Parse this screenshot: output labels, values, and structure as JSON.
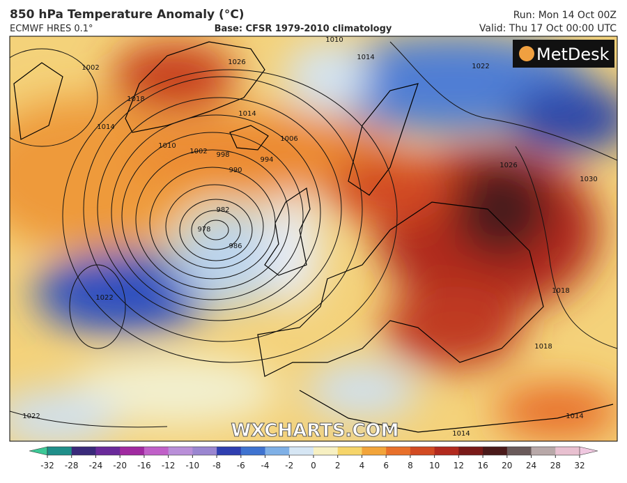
{
  "header": {
    "title": "850 hPa Temperature Anomaly (°C)",
    "model": "ECMWF HRES 0.1°",
    "base": "Base: CFSR 1979-2010 climatology",
    "run": "Run: Mon 14 Oct 00Z",
    "valid": "Valid: Thu 17 Oct 00:00 UTC"
  },
  "logo": "MetDesk",
  "watermark": "WXCHARTS.COM",
  "isobar_labels": [
    "1002",
    "1010",
    "1014",
    "1018",
    "1026",
    "1022",
    "1014",
    "1006",
    "1010",
    "1002",
    "998",
    "994",
    "990",
    "982",
    "978",
    "986",
    "1014",
    "1022",
    "1022",
    "1026",
    "1030",
    "1018",
    "1018",
    "1014",
    "1014"
  ],
  "colorbar": {
    "ticks": [
      -32,
      -28,
      -24,
      -20,
      -16,
      -12,
      -10,
      -8,
      -6,
      -4,
      -2,
      0,
      2,
      4,
      6,
      8,
      10,
      12,
      16,
      20,
      24,
      28,
      32
    ],
    "colors": [
      "#1f8f8a",
      "#3a2a7a",
      "#6a2a9a",
      "#a02aa0",
      "#c060c8",
      "#b98fd8",
      "#9a86d0",
      "#2f3fb0",
      "#3f73d0",
      "#7fb0e6",
      "#d6e6f4",
      "#f7f0c2",
      "#f6d56a",
      "#f2a43a",
      "#e8702a",
      "#d24a22",
      "#b22a1e",
      "#7a1a18",
      "#4a1a1a",
      "#6a5a5a",
      "#b8a8a8",
      "#e8c0d0"
    ],
    "low_color": "#3cc896",
    "high_color": "#f0c8e0"
  }
}
